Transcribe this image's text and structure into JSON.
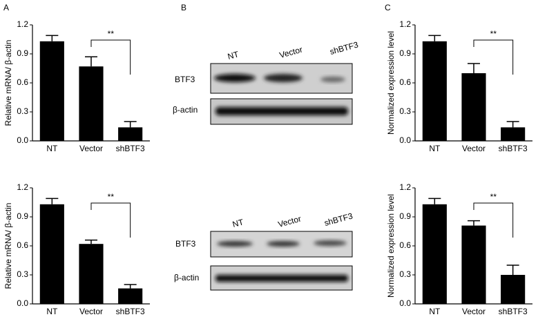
{
  "panel_labels": [
    "A",
    "B",
    "C"
  ],
  "blots": [
    {
      "lane_labels": [
        "NT",
        "Vector",
        "shBTF3"
      ],
      "rows": [
        "BTF3",
        "β-actin"
      ]
    },
    {
      "lane_labels": [
        "NT",
        "Vector",
        "shBTF3"
      ],
      "rows": [
        "BTF3",
        "β-actin"
      ]
    }
  ],
  "chart_data": [
    {
      "type": "bar",
      "ylabel": "Relative mRNA/ β-actin",
      "categories": [
        "NT",
        "Vector",
        "shBTF3"
      ],
      "values": [
        1.03,
        0.77,
        0.14
      ],
      "errors": [
        0.06,
        0.1,
        0.06
      ],
      "color": "#000000",
      "ylim": [
        0,
        1.2
      ],
      "yticks": [
        {
          "value": 0,
          "label": "0.0"
        },
        0.3,
        0.6,
        0.9,
        1.2
      ],
      "annotation": "**"
    },
    {
      "type": "bar",
      "ylabel": "Relative mRNA/ β-actin",
      "categories": [
        "NT",
        "Vector",
        "shBTF3"
      ],
      "values": [
        1.03,
        0.62,
        0.16
      ],
      "errors": [
        0.06,
        0.04,
        0.04
      ],
      "color": "#000000",
      "ylim": [
        0,
        1.2
      ],
      "yticks": [
        {
          "value": 0,
          "label": "0.0"
        },
        0.3,
        0.6,
        0.9,
        1.2
      ],
      "annotation": "**"
    },
    {
      "type": "bar",
      "ylabel": "Normalized expression level",
      "categories": [
        "NT",
        "Vector",
        "shBTF3"
      ],
      "values": [
        1.03,
        0.7,
        0.14
      ],
      "errors": [
        0.06,
        0.1,
        0.06
      ],
      "color": "#000000",
      "ylim": [
        0,
        1.2
      ],
      "yticks": [
        {
          "value": 0,
          "label": "0.0"
        },
        0.3,
        0.6,
        0.9,
        1.2
      ],
      "annotation": "**"
    },
    {
      "type": "bar",
      "ylabel": "Normalized expression level",
      "categories": [
        "NT",
        "Vector",
        "shBTF3"
      ],
      "values": [
        1.03,
        0.81,
        0.3
      ],
      "errors": [
        0.06,
        0.05,
        0.1
      ],
      "color": "#000000",
      "ylim": [
        0,
        1.2
      ],
      "yticks": [
        {
          "value": 0,
          "label": "0.0"
        },
        0.3,
        0.6,
        0.9,
        1.2
      ],
      "annotation": "**"
    }
  ]
}
